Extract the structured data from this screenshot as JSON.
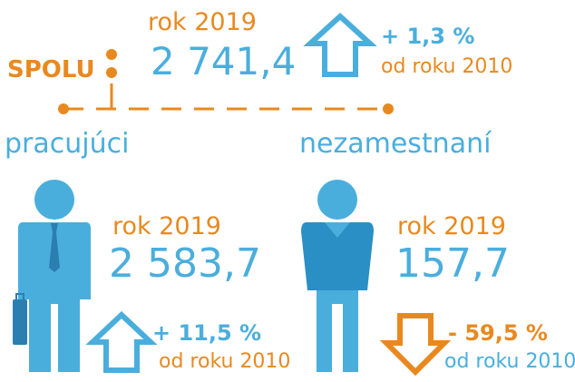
{
  "total": {
    "label": "SPOLU",
    "year": "rok 2019",
    "value": "2 741,4",
    "change": "+ 1,3 %",
    "since": "od roku 2010"
  },
  "employed": {
    "label": "pracujúci",
    "year": "rok 2019",
    "value": "2 583,7",
    "change": "+ 11,5 %",
    "since": "od roku 2010"
  },
  "unemployed": {
    "label": "nezamestnaní",
    "year": "rok 2019",
    "value": "157,7",
    "change": "- 59,5 %",
    "since": "od roku 2010"
  }
}
